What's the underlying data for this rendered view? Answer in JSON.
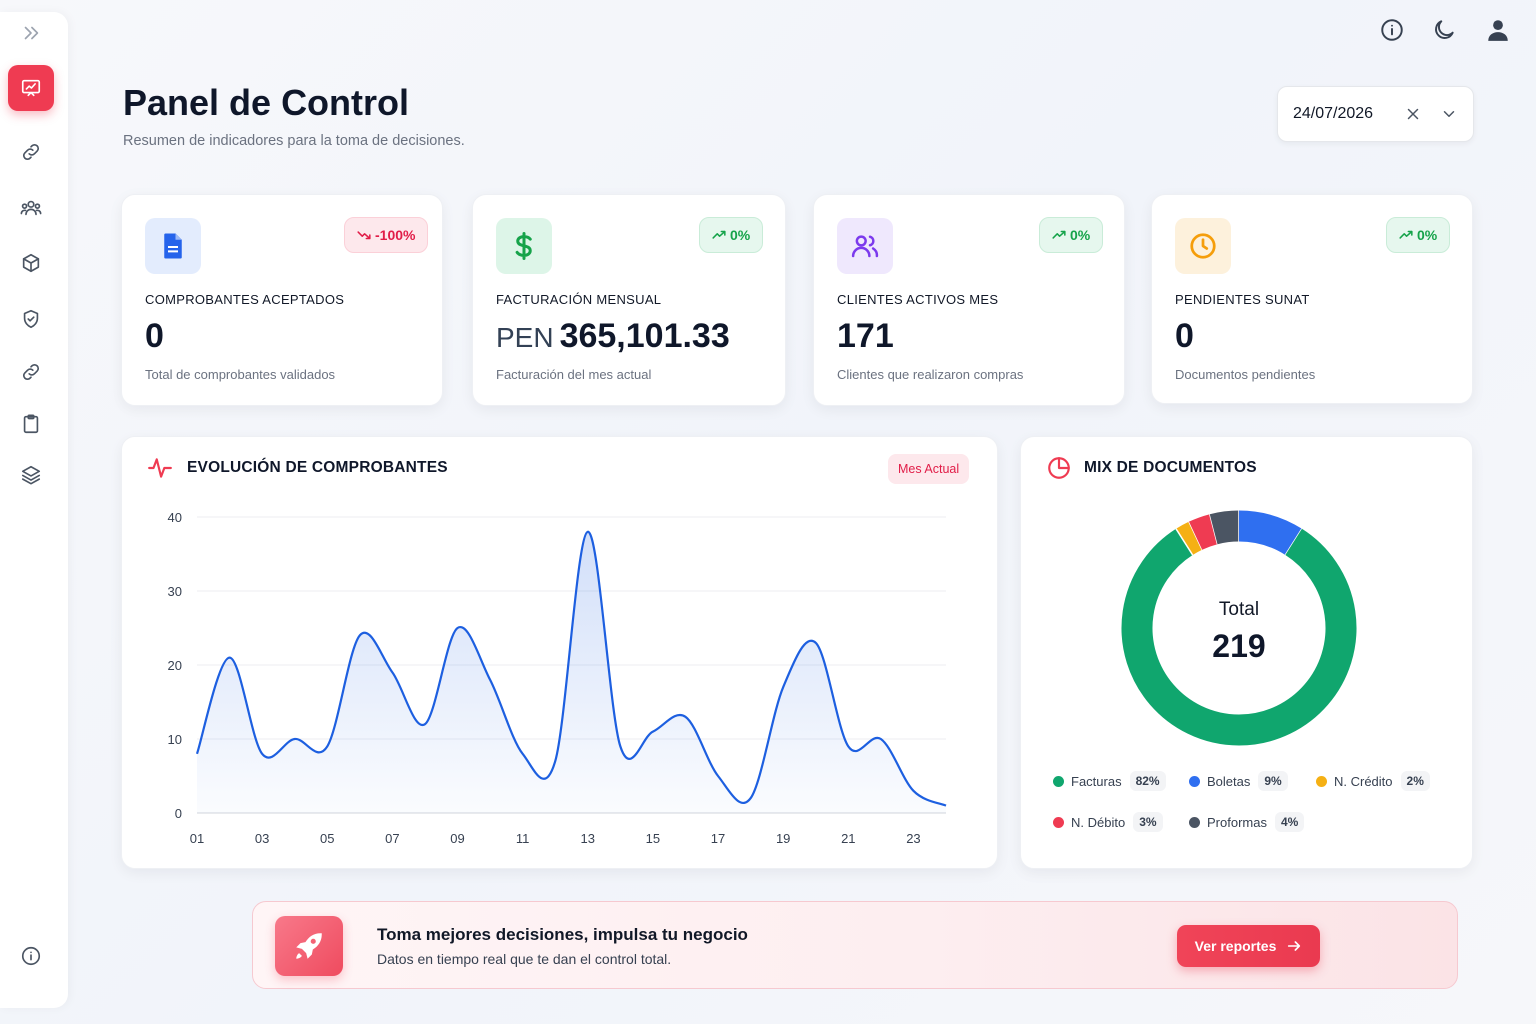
{
  "header": {
    "title": "Panel de Control",
    "subtitle": "Resumen de indicadores para la toma de decisiones."
  },
  "date_picker": {
    "value": "24/07/2026"
  },
  "sidebar": {
    "items": [
      {
        "icon": "chart-presentation-icon",
        "active": true
      },
      {
        "icon": "link-icon"
      },
      {
        "icon": "users-icon"
      },
      {
        "icon": "box-icon"
      },
      {
        "icon": "shield-check-icon"
      },
      {
        "icon": "link-icon"
      },
      {
        "icon": "clipboard-icon"
      },
      {
        "icon": "layers-icon"
      }
    ],
    "bottom_icon": "info-icon"
  },
  "top_bar": {
    "icons": [
      "info-icon",
      "moon-icon",
      "user-icon"
    ]
  },
  "kpis": [
    {
      "label": "COMPROBANTES ACEPTADOS",
      "value": "0",
      "currency": "",
      "desc": "Total de comprobantes validados",
      "badge": "-100%",
      "trend": "down",
      "icon": "document-icon",
      "color": "#2563eb"
    },
    {
      "label": "FACTURACIÓN MENSUAL",
      "value": "365,101.33",
      "currency": "PEN",
      "desc": "Facturación del mes actual",
      "badge": "0%",
      "trend": "up",
      "icon": "dollar-icon",
      "color": "#16a34a"
    },
    {
      "label": "CLIENTES ACTIVOS MES",
      "value": "171",
      "currency": "",
      "desc": "Clientes que realizaron compras",
      "badge": "0%",
      "trend": "up",
      "icon": "users-icon",
      "color": "#7c3aed"
    },
    {
      "label": "PENDIENTES SUNAT",
      "value": "0",
      "currency": "",
      "desc": "Documentos pendientes",
      "badge": "0%",
      "trend": "up",
      "icon": "clock-icon",
      "color": "#f59e0b"
    }
  ],
  "evolution": {
    "title": "EVOLUCIÓN DE COMPROBANTES",
    "badge": "Mes Actual"
  },
  "chart_data": [
    {
      "type": "area",
      "title": "EVOLUCIÓN DE COMPROBANTES",
      "x": [
        1,
        2,
        3,
        4,
        5,
        6,
        7,
        8,
        9,
        10,
        11,
        12,
        13,
        14,
        15,
        16,
        17,
        18,
        19,
        20,
        21,
        22,
        23,
        24
      ],
      "y": [
        8,
        21,
        8,
        10,
        9,
        24,
        19,
        12,
        25,
        18,
        8,
        7,
        38,
        9,
        11,
        13,
        5,
        2,
        17,
        23,
        9,
        10,
        3,
        1
      ],
      "xticks": [
        "01",
        "03",
        "05",
        "07",
        "09",
        "11",
        "13",
        "15",
        "17",
        "19",
        "21",
        "23"
      ],
      "yticks": [
        0,
        10,
        20,
        30,
        40
      ],
      "ylim": [
        0,
        40
      ],
      "grid": true,
      "color": "#1d5fe0"
    },
    {
      "type": "pie",
      "title": "MIX DE DOCUMENTOS",
      "center_label": "Total",
      "center_value": "219",
      "slices": [
        {
          "name": "Facturas",
          "pct": "82%",
          "value": 82,
          "color": "#10a66e"
        },
        {
          "name": "Boletas",
          "pct": "9%",
          "value": 9,
          "color": "#2f6ff0"
        },
        {
          "name": "N. Crédito",
          "pct": "2%",
          "value": 2,
          "color": "#f5b014"
        },
        {
          "name": "N. Débito",
          "pct": "3%",
          "value": 3,
          "color": "#ef3b52"
        },
        {
          "name": "Proformas",
          "pct": "4%",
          "value": 4,
          "color": "#4b5563"
        }
      ]
    }
  ],
  "mix": {
    "title": "MIX DE DOCUMENTOS"
  },
  "banner": {
    "title": "Toma mejores decisiones, impulsa tu negocio",
    "subtitle": "Datos en tiempo real que te dan el control total.",
    "button": "Ver reportes"
  }
}
